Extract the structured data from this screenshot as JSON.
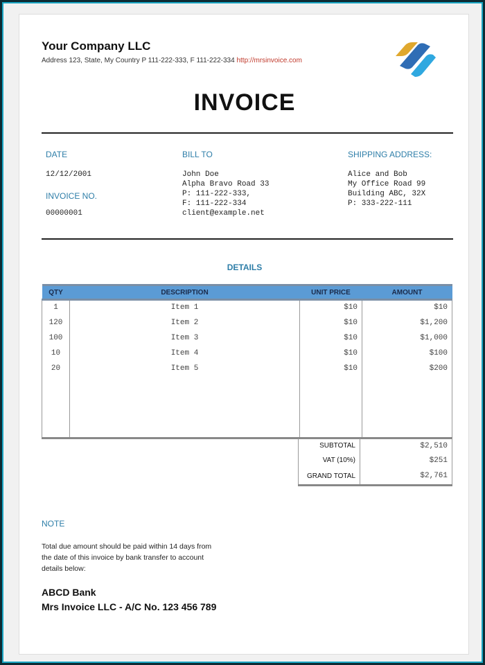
{
  "header": {
    "company": "Your Company LLC",
    "address": "Address 123, State, My Country P 111-222-333, F 111-222-334",
    "url": "http://mrsinvoice.com",
    "logo_colors": [
      "#e0a82e",
      "#2f6db5",
      "#2fa8e0"
    ]
  },
  "title": "INVOICE",
  "date": {
    "label": "DATE",
    "value": "12/12/2001"
  },
  "invoice_no": {
    "label": "INVOICE NO.",
    "value": "00000001"
  },
  "bill_to": {
    "label": "BILL TO",
    "lines": "John Doe\nAlpha Bravo Road 33\nP: 111-222-333,\nF: 111-222-334\nclient@example.net"
  },
  "shipping": {
    "label": "SHIPPING ADDRESS:",
    "lines": "Alice and Bob\nMy Office Road 99\nBuilding ABC, 32X\nP: 333-222-111"
  },
  "details_heading": "DETAILS",
  "table": {
    "headers": [
      "QTY",
      "DESCRIPTION",
      "UNIT PRICE",
      "AMOUNT"
    ],
    "rows": [
      [
        "1",
        "Item 1",
        "$10",
        "$10"
      ],
      [
        "120",
        "Item 2",
        "$10",
        "$1,200"
      ],
      [
        "100",
        "Item 3",
        "$10",
        "$1,000"
      ],
      [
        "10",
        "Item 4",
        "$10",
        "$100"
      ],
      [
        "20",
        "Item 5",
        "$10",
        "$200"
      ]
    ],
    "header_color": "#5b9bd5"
  },
  "totals": [
    {
      "label": "SUBTOTAL",
      "value": "$2,510"
    },
    {
      "label": "VAT (10%)",
      "value": "$251"
    },
    {
      "label": "GRAND TOTAL",
      "value": "$2,761"
    }
  ],
  "note": {
    "label": "NOTE",
    "text": "Total due amount should be paid within 14 days from the date of this invoice by bank transfer to account details below:",
    "bank": "ABCD Bank",
    "account": "Mrs Invoice LLC - A/C No. 123 456 789"
  }
}
